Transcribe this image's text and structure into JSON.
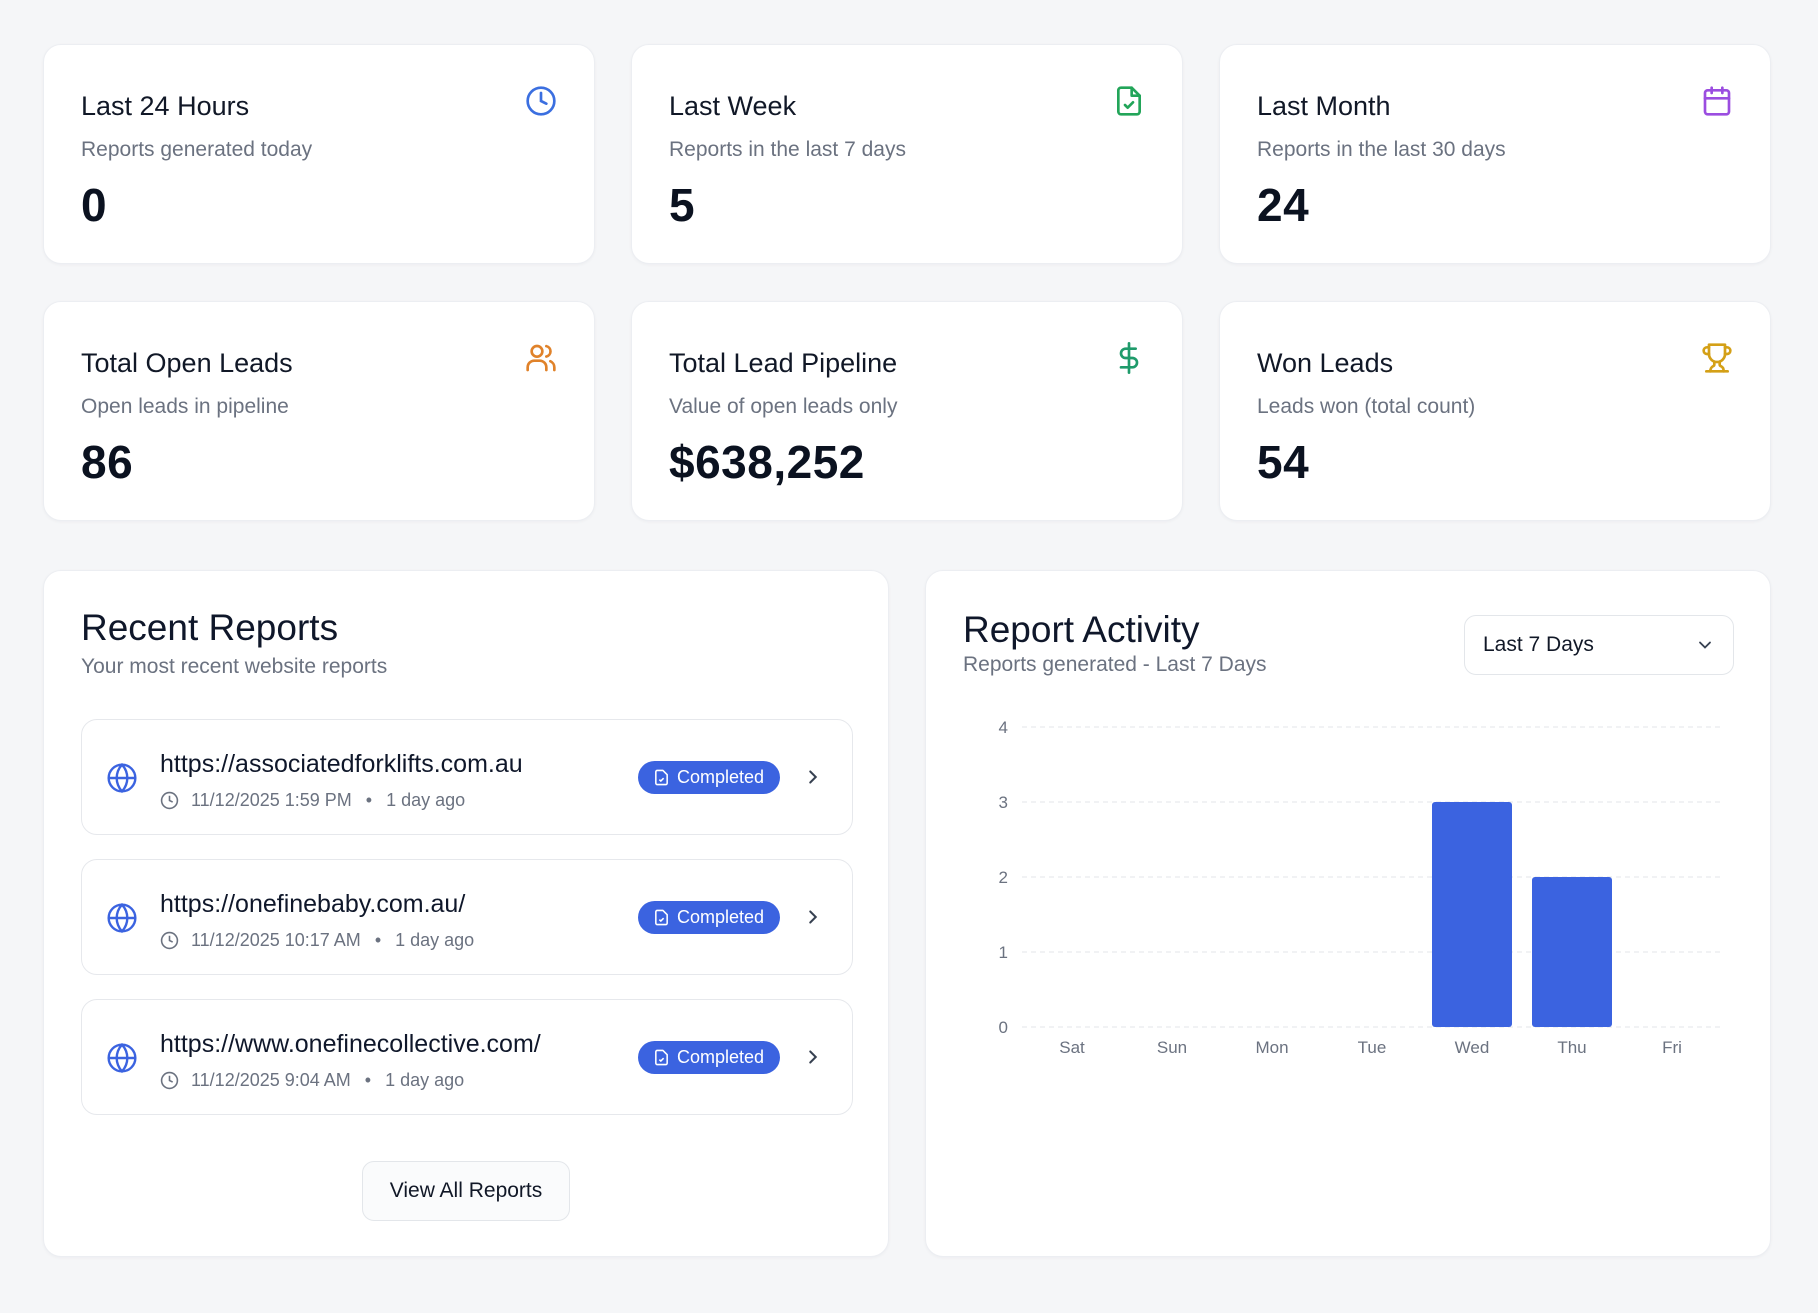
{
  "stats": [
    {
      "title": "Last 24 Hours",
      "subtitle": "Reports generated today",
      "value": "0",
      "icon": "clock-icon",
      "color": "#3b6fe0"
    },
    {
      "title": "Last Week",
      "subtitle": "Reports in the last 7 days",
      "value": "5",
      "icon": "file-check-icon",
      "color": "#22a559"
    },
    {
      "title": "Last Month",
      "subtitle": "Reports in the last 30 days",
      "value": "24",
      "icon": "calendar-icon",
      "color": "#9b4de0"
    },
    {
      "title": "Total Open Leads",
      "subtitle": "Open leads in pipeline",
      "value": "86",
      "icon": "users-icon",
      "color": "#e0822a"
    },
    {
      "title": "Total Lead Pipeline",
      "subtitle": "Value of open leads only",
      "value": "$638,252",
      "icon": "dollar-icon",
      "color": "#1f9b6b"
    },
    {
      "title": "Won Leads",
      "subtitle": "Leads won (total count)",
      "value": "54",
      "icon": "trophy-icon",
      "color": "#d4a017"
    }
  ],
  "recent": {
    "title": "Recent Reports",
    "subtitle": "Your most recent website reports",
    "items": [
      {
        "url": "https://associatedforklifts.com.au",
        "date": "11/12/2025 1:59 PM",
        "ago": "1 day ago",
        "status": "Completed"
      },
      {
        "url": "https://onefinebaby.com.au/",
        "date": "11/12/2025 10:17 AM",
        "ago": "1 day ago",
        "status": "Completed"
      },
      {
        "url": "https://www.onefinecollective.com/",
        "date": "11/12/2025 9:04 AM",
        "ago": "1 day ago",
        "status": "Completed"
      }
    ],
    "view_all": "View All Reports",
    "separator": "•"
  },
  "activity": {
    "title": "Report Activity",
    "subtitle": "Reports generated - Last 7 Days",
    "range": "Last 7 Days"
  },
  "colors": {
    "accent": "#3b63e0",
    "bar": "#3b63e0"
  },
  "chart_data": {
    "type": "bar",
    "categories": [
      "Sat",
      "Sun",
      "Mon",
      "Tue",
      "Wed",
      "Thu",
      "Fri"
    ],
    "values": [
      0,
      0,
      0,
      0,
      3,
      2,
      0
    ],
    "yticks": [
      0,
      1,
      2,
      3,
      4
    ],
    "ylim": [
      0,
      4
    ],
    "grid": true
  }
}
